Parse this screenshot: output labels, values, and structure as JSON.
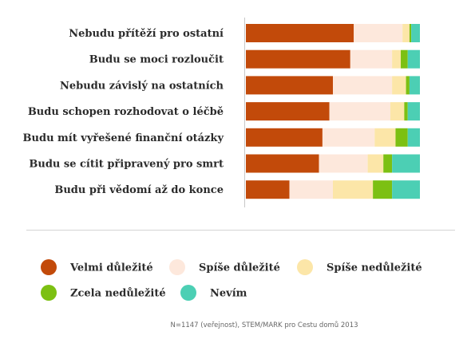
{
  "chart_data": {
    "type": "bar",
    "orientation": "horizontal",
    "stacked": true,
    "percent_scale": [
      0,
      100
    ],
    "grid": false,
    "legend_position": "bottom",
    "categories": [
      "Nebudu přítěží pro ostatní",
      "Budu se moci rozloučit",
      "Nebudu závislý na ostatních",
      "Budu schopen rozhodovat o léčbě",
      "Budu mít vyřešené finanční otázky",
      "Budu se cítit připravený pro smrt",
      "Budu při vědomí až do konce"
    ],
    "series": [
      {
        "name": "Velmi důležité",
        "color": "#c24a0a",
        "values": [
          62,
          60,
          50,
          48,
          44,
          42,
          25
        ]
      },
      {
        "name": "Spíše důležité",
        "color": "#fde8dc",
        "values": [
          28,
          24,
          34,
          35,
          30,
          28,
          25
        ]
      },
      {
        "name": "Spíše nedůležité",
        "color": "#fce6a8",
        "values": [
          4,
          5,
          8,
          8,
          12,
          9,
          23
        ]
      },
      {
        "name": "Zcela nedůležité",
        "color": "#7cc012",
        "values": [
          1,
          4,
          2,
          2,
          7,
          5,
          11
        ]
      },
      {
        "name": "Nevím",
        "color": "#4ccfb4",
        "values": [
          5,
          7,
          6,
          7,
          7,
          16,
          16
        ]
      }
    ],
    "source": "N=1147 (veřejnost), STEM/MARK pro Cestu domů 2013"
  }
}
